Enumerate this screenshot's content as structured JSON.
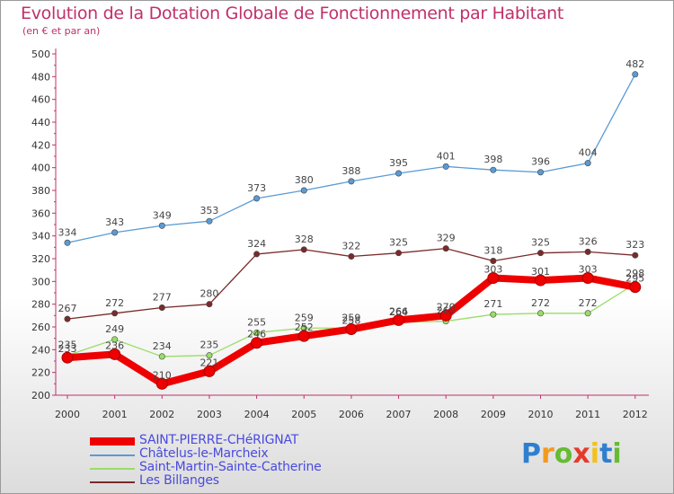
{
  "header": {
    "title": "Evolution de la Dotation Globale de Fonctionnement par Habitant",
    "subtitle": "(en € et par an)"
  },
  "colors": {
    "title": "#c0306a",
    "axis": "#c0306a",
    "legend_text": "#4a4ae0"
  },
  "logo": {
    "letters": [
      "P",
      "r",
      "o",
      "x",
      "i",
      "t",
      "i"
    ]
  },
  "chart_data": {
    "type": "line",
    "title": "Evolution de la Dotation Globale de Fonctionnement par Habitant",
    "subtitle": "(en € et par an)",
    "xlabel": "",
    "ylabel": "",
    "categories": [
      "2000",
      "2001",
      "2002",
      "2003",
      "2004",
      "2005",
      "2006",
      "2007",
      "2008",
      "2009",
      "2010",
      "2011",
      "2012"
    ],
    "ylim": [
      200,
      500
    ],
    "yticks": [
      200,
      220,
      240,
      260,
      280,
      300,
      320,
      340,
      360,
      380,
      400,
      420,
      440,
      460,
      480,
      500
    ],
    "grid": "none",
    "legend_position": "bottom-left",
    "series": [
      {
        "name": "SAINT-PIERRE-CHéRIGNAT",
        "color": "#ee0000",
        "weight": "thick",
        "values": [
          233,
          236,
          210,
          221,
          246,
          252,
          258,
          266,
          270,
          303,
          301,
          303,
          295
        ],
        "labels": [
          "233",
          "236",
          "210",
          "221",
          "246",
          "252",
          "258",
          "266",
          "270",
          "303",
          "301",
          "303",
          "295"
        ]
      },
      {
        "name": "Châtelus-le-Marcheix",
        "color": "#5a9bd5",
        "weight": "thin",
        "values": [
          334,
          343,
          349,
          353,
          373,
          380,
          388,
          395,
          401,
          398,
          396,
          404,
          482
        ],
        "labels": [
          "334",
          "343",
          "349",
          "353",
          "373",
          "380",
          "388",
          "395",
          "401",
          "398",
          "396",
          "404",
          "482"
        ]
      },
      {
        "name": "Saint-Martin-Sainte-Catherine",
        "color": "#99dd66",
        "weight": "thin",
        "values": [
          235,
          249,
          234,
          235,
          255,
          259,
          259,
          264,
          265,
          271,
          272,
          272,
          298
        ],
        "labels": [
          "235",
          "249",
          "234",
          "235",
          "255",
          "259",
          "259",
          "264",
          "265",
          "271",
          "272",
          "272",
          "298"
        ]
      },
      {
        "name": "Les Billanges",
        "color": "#7a2a2a",
        "weight": "thin",
        "values": [
          267,
          272,
          277,
          280,
          324,
          328,
          322,
          325,
          329,
          318,
          325,
          326,
          323
        ],
        "labels": [
          "267",
          "272",
          "277",
          "280",
          "324",
          "328",
          "322",
          "325",
          "329",
          "318",
          "325",
          "326",
          "323"
        ]
      }
    ]
  }
}
